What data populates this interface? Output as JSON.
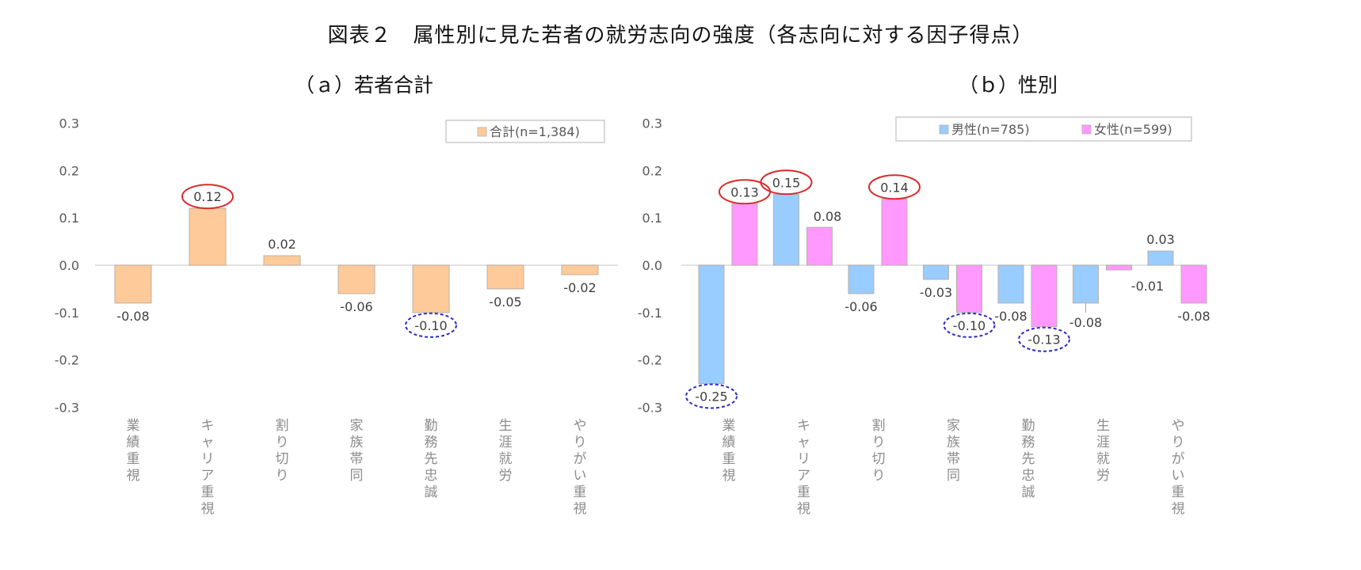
{
  "title": "図表２　属性別に見た若者の就労志向の強度（各志向に対する因子得点）",
  "chart_data": [
    {
      "id": "a",
      "type": "bar",
      "subtitle": "（ａ）若者合計",
      "categories": [
        "業績重視",
        "キャリア重視",
        "割り切り",
        "家族帯同",
        "勤務先忠誠",
        "生涯就労",
        "やりがい重視"
      ],
      "series": [
        {
          "name": "合計(n=1,384)",
          "color": "#FFCA99",
          "values": [
            -0.08,
            0.12,
            0.02,
            -0.06,
            -0.1,
            -0.05,
            -0.02
          ]
        }
      ],
      "ylim": [
        -0.3,
        0.3
      ],
      "yticks": [
        "0.3",
        "0.2",
        "0.1",
        "0.0",
        "-0.1",
        "-0.2",
        "-0.3"
      ],
      "legend_position": "top-right",
      "highlights": [
        {
          "series": 0,
          "category": 1,
          "style": "red-solid-ellipse"
        },
        {
          "series": 0,
          "category": 4,
          "style": "blue-dashed-ellipse"
        }
      ]
    },
    {
      "id": "b",
      "type": "bar",
      "subtitle": "（ｂ）性別",
      "categories": [
        "業績重視",
        "キャリア重視",
        "割り切り",
        "家族帯同",
        "勤務先忠誠",
        "生涯就労",
        "やりがい重視"
      ],
      "series": [
        {
          "name": "男性(n=785)",
          "color": "#99CCFF",
          "values": [
            -0.25,
            0.15,
            -0.06,
            -0.03,
            -0.08,
            -0.08,
            0.03
          ]
        },
        {
          "name": "女性(n=599)",
          "color": "#FF99FF",
          "values": [
            0.13,
            0.08,
            0.14,
            -0.1,
            -0.13,
            -0.01,
            -0.08
          ]
        }
      ],
      "ylim": [
        -0.3,
        0.3
      ],
      "yticks": [
        "0.3",
        "0.2",
        "0.1",
        "0.0",
        "-0.1",
        "-0.2",
        "-0.3"
      ],
      "legend_position": "top-right",
      "highlights": [
        {
          "series": 1,
          "category": 0,
          "style": "red-solid-ellipse"
        },
        {
          "series": 0,
          "category": 1,
          "style": "red-solid-ellipse"
        },
        {
          "series": 1,
          "category": 2,
          "style": "red-solid-ellipse"
        },
        {
          "series": 0,
          "category": 0,
          "style": "blue-dashed-ellipse"
        },
        {
          "series": 1,
          "category": 3,
          "style": "blue-dashed-ellipse"
        },
        {
          "series": 1,
          "category": 4,
          "style": "blue-dashed-ellipse"
        }
      ]
    }
  ],
  "colors": {
    "highlight_positive": "#D92B2B",
    "highlight_negative": "#2A2ACC",
    "axis_line": "#D9D9D9",
    "tick_text": "#595959",
    "category_text": "#8C8C8C"
  }
}
